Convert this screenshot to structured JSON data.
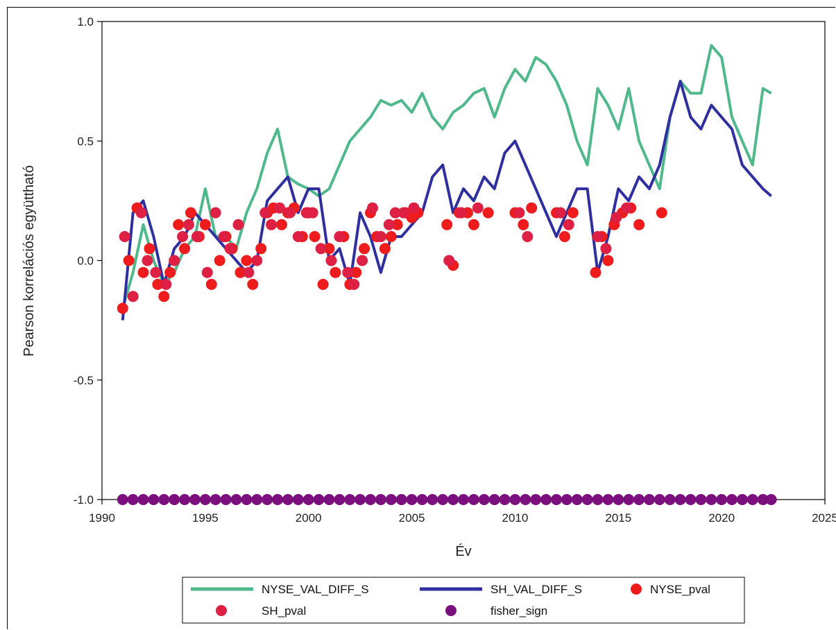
{
  "chart_data": {
    "type": "line",
    "xlabel": "Év",
    "ylabel": "Pearson korrelációs együttható",
    "xlim": [
      1990,
      2025
    ],
    "ylim": [
      -1.0,
      1.0
    ],
    "xticks": [
      "1990",
      "1995",
      "2000",
      "2005",
      "2010",
      "2015",
      "2020",
      "2025"
    ],
    "yticks": [
      "-1.0",
      "-0.5",
      "0.0",
      "0.5",
      "1.0"
    ],
    "grid": false,
    "legend_position": "bottom",
    "legend": [
      {
        "name": "NYSE_VAL_DIFF_S",
        "kind": "line",
        "color": "#4fb98c"
      },
      {
        "name": "SH_VAL_DIFF_S",
        "kind": "line",
        "color": "#2f2fa0"
      },
      {
        "name": "NYSE_pval",
        "kind": "marker",
        "color": "#ee1c1c"
      },
      {
        "name": "SH_pval",
        "kind": "marker",
        "color": "#dd2044"
      },
      {
        "name": "fisher_sign",
        "kind": "marker",
        "color": "#7b0f7e"
      }
    ],
    "series": [
      {
        "name": "NYSE_VAL_DIFF_S",
        "type": "line",
        "color": "#4fb98c",
        "x": [
          1991.0,
          1991.5,
          1992.0,
          1992.5,
          1993.0,
          1993.5,
          1994.0,
          1994.5,
          1995.0,
          1995.5,
          1996.0,
          1996.5,
          1997.0,
          1997.5,
          1998.0,
          1998.5,
          1999.0,
          1999.5,
          2000.0,
          2000.5,
          2001.0,
          2001.5,
          2002.0,
          2002.5,
          2003.0,
          2003.5,
          2004.0,
          2004.5,
          2005.0,
          2005.5,
          2006.0,
          2006.5,
          2007.0,
          2007.5,
          2008.0,
          2008.5,
          2009.0,
          2009.5,
          2010.0,
          2010.5,
          2011.0,
          2011.5,
          2012.0,
          2012.5,
          2013.0,
          2013.5,
          2014.0,
          2014.5,
          2015.0,
          2015.5,
          2016.0,
          2016.5,
          2017.0,
          2017.5,
          2018.0,
          2018.5,
          2019.0,
          2019.5,
          2020.0,
          2020.5,
          2021.0,
          2021.5,
          2022.0,
          2022.4
        ],
        "y": [
          -0.2,
          -0.05,
          0.15,
          0.0,
          -0.1,
          -0.05,
          0.05,
          0.1,
          0.3,
          0.1,
          0.1,
          0.05,
          0.2,
          0.3,
          0.45,
          0.55,
          0.35,
          0.32,
          0.3,
          0.27,
          0.3,
          0.4,
          0.5,
          0.55,
          0.6,
          0.67,
          0.65,
          0.67,
          0.62,
          0.7,
          0.6,
          0.55,
          0.62,
          0.65,
          0.7,
          0.72,
          0.6,
          0.72,
          0.8,
          0.75,
          0.85,
          0.82,
          0.75,
          0.65,
          0.5,
          0.4,
          0.72,
          0.65,
          0.55,
          0.72,
          0.5,
          0.4,
          0.3,
          0.6,
          0.75,
          0.7,
          0.7,
          0.9,
          0.85,
          0.6,
          0.5,
          0.4,
          0.72,
          0.7
        ]
      },
      {
        "name": "SH_VAL_DIFF_S",
        "type": "line",
        "color": "#2f2fa0",
        "x": [
          1991.0,
          1991.5,
          1992.0,
          1992.5,
          1993.0,
          1993.5,
          1994.0,
          1994.5,
          1995.0,
          1995.5,
          1996.0,
          1996.5,
          1997.0,
          1997.5,
          1998.0,
          1998.5,
          1999.0,
          1999.5,
          2000.0,
          2000.5,
          2001.0,
          2001.5,
          2002.0,
          2002.5,
          2003.0,
          2003.5,
          2004.0,
          2004.5,
          2005.0,
          2005.5,
          2006.0,
          2006.5,
          2007.0,
          2007.5,
          2008.0,
          2008.5,
          2009.0,
          2009.5,
          2010.0,
          2010.5,
          2011.0,
          2011.5,
          2012.0,
          2012.5,
          2013.0,
          2013.5,
          2014.0,
          2014.5,
          2015.0,
          2015.5,
          2016.0,
          2016.5,
          2017.0,
          2017.5,
          2018.0,
          2018.5,
          2019.0,
          2019.5,
          2020.0,
          2020.5,
          2021.0,
          2021.5,
          2022.0,
          2022.4
        ],
        "y": [
          -0.25,
          0.2,
          0.25,
          0.1,
          -0.1,
          0.05,
          0.1,
          0.2,
          0.15,
          0.1,
          0.05,
          0.0,
          -0.05,
          0.0,
          0.25,
          0.3,
          0.35,
          0.2,
          0.3,
          0.3,
          0.0,
          0.05,
          -0.1,
          0.2,
          0.1,
          -0.05,
          0.1,
          0.1,
          0.15,
          0.2,
          0.35,
          0.4,
          0.2,
          0.3,
          0.25,
          0.35,
          0.3,
          0.45,
          0.5,
          0.4,
          0.3,
          0.2,
          0.1,
          0.2,
          0.3,
          0.3,
          -0.05,
          0.1,
          0.3,
          0.25,
          0.35,
          0.3,
          0.4,
          0.6,
          0.75,
          0.6,
          0.55,
          0.65,
          0.6,
          0.55,
          0.4,
          0.35,
          0.3,
          0.27
        ]
      },
      {
        "name": "NYSE_pval",
        "type": "scatter",
        "color": "#ee1c1c",
        "x": [
          1991.0,
          1991.3,
          1991.7,
          1992.0,
          1992.3,
          1992.7,
          1993.0,
          1993.3,
          1993.7,
          1994.0,
          1994.3,
          1994.7,
          1995.0,
          1995.3,
          1995.7,
          1996.0,
          1996.3,
          1996.7,
          1997.0,
          1997.3,
          1997.7,
          1998.0,
          1998.3,
          1998.7,
          1999.0,
          1999.3,
          1999.7,
          2000.0,
          2000.3,
          2000.7,
          2001.0,
          2001.3,
          2001.7,
          2002.0,
          2002.3,
          2002.7,
          2003.0,
          2003.3,
          2003.7,
          2004.0,
          2004.3,
          2004.7,
          2005.0,
          2005.3,
          2006.7,
          2007.0,
          2007.3,
          2007.7,
          2008.0,
          2008.7,
          2010.0,
          2010.4,
          2010.8,
          2012.0,
          2012.4,
          2012.8,
          2013.9,
          2014.2,
          2014.5,
          2014.8,
          2015.2,
          2015.6,
          2016.0,
          2017.1
        ],
        "y": [
          -0.2,
          0.0,
          0.22,
          -0.05,
          0.05,
          -0.1,
          -0.15,
          -0.05,
          0.15,
          0.05,
          0.2,
          0.1,
          0.15,
          -0.1,
          0.0,
          0.1,
          0.05,
          -0.05,
          0.0,
          -0.1,
          0.05,
          0.2,
          0.22,
          0.15,
          0.2,
          0.22,
          0.1,
          0.2,
          0.1,
          -0.1,
          0.05,
          -0.05,
          0.1,
          -0.1,
          -0.05,
          0.05,
          0.2,
          0.1,
          0.05,
          0.1,
          0.15,
          0.2,
          0.18,
          0.2,
          0.15,
          -0.02,
          0.2,
          0.2,
          0.15,
          0.2,
          0.2,
          0.15,
          0.22,
          0.2,
          0.1,
          0.2,
          -0.05,
          0.1,
          0.0,
          0.15,
          0.2,
          0.22,
          0.15,
          0.2
        ]
      },
      {
        "name": "SH_pval",
        "type": "scatter",
        "color": "#dd2044",
        "x": [
          1991.1,
          1991.5,
          1991.9,
          1992.2,
          1992.6,
          1993.1,
          1993.5,
          1993.9,
          1994.2,
          1994.6,
          1995.1,
          1995.5,
          1995.9,
          1996.2,
          1996.6,
          1997.1,
          1997.5,
          1997.9,
          1998.2,
          1998.6,
          1999.1,
          1999.5,
          1999.9,
          2000.2,
          2000.6,
          2001.1,
          2001.5,
          2001.9,
          2002.2,
          2002.6,
          2003.1,
          2003.5,
          2003.9,
          2004.2,
          2004.6,
          2005.1,
          2006.8,
          2007.4,
          2008.2,
          2010.2,
          2010.6,
          2012.2,
          2012.6,
          2014.0,
          2014.4,
          2014.9,
          2015.4
        ],
        "y": [
          0.1,
          -0.15,
          0.2,
          0.0,
          -0.05,
          -0.1,
          0.0,
          0.1,
          0.15,
          0.1,
          -0.05,
          0.2,
          0.1,
          0.05,
          0.15,
          -0.05,
          0.0,
          0.2,
          0.15,
          0.22,
          0.2,
          0.1,
          0.2,
          0.2,
          0.05,
          0.0,
          0.1,
          -0.05,
          -0.1,
          0.0,
          0.22,
          0.1,
          0.15,
          0.2,
          0.2,
          0.22,
          0.0,
          0.2,
          0.22,
          0.2,
          0.1,
          0.2,
          0.15,
          0.1,
          0.05,
          0.18,
          0.22
        ]
      },
      {
        "name": "fisher_sign",
        "type": "scatter",
        "color": "#7b0f7e",
        "x": [
          1991.0,
          1991.5,
          1992.0,
          1992.5,
          1993.0,
          1993.5,
          1994.0,
          1994.5,
          1995.0,
          1995.5,
          1996.0,
          1996.5,
          1997.0,
          1997.5,
          1998.0,
          1998.5,
          1999.0,
          1999.5,
          2000.0,
          2000.5,
          2001.0,
          2001.5,
          2002.0,
          2002.5,
          2003.0,
          2003.5,
          2004.0,
          2004.5,
          2005.0,
          2005.5,
          2006.0,
          2006.5,
          2007.0,
          2007.5,
          2008.0,
          2008.5,
          2009.0,
          2009.5,
          2010.0,
          2010.5,
          2011.0,
          2011.5,
          2012.0,
          2012.5,
          2013.0,
          2013.5,
          2014.0,
          2014.5,
          2015.0,
          2015.5,
          2016.0,
          2016.5,
          2017.0,
          2017.5,
          2018.0,
          2018.5,
          2019.0,
          2019.5,
          2020.0,
          2020.5,
          2021.0,
          2021.5,
          2022.0,
          2022.4
        ],
        "y": [
          -1.0,
          -1.0,
          -1.0,
          -1.0,
          -1.0,
          -1.0,
          -1.0,
          -1.0,
          -1.0,
          -1.0,
          -1.0,
          -1.0,
          -1.0,
          -1.0,
          -1.0,
          -1.0,
          -1.0,
          -1.0,
          -1.0,
          -1.0,
          -1.0,
          -1.0,
          -1.0,
          -1.0,
          -1.0,
          -1.0,
          -1.0,
          -1.0,
          -1.0,
          -1.0,
          -1.0,
          -1.0,
          -1.0,
          -1.0,
          -1.0,
          -1.0,
          -1.0,
          -1.0,
          -1.0,
          -1.0,
          -1.0,
          -1.0,
          -1.0,
          -1.0,
          -1.0,
          -1.0,
          -1.0,
          -1.0,
          -1.0,
          -1.0,
          -1.0,
          -1.0,
          -1.0,
          -1.0,
          -1.0,
          -1.0,
          -1.0,
          -1.0,
          -1.0,
          -1.0,
          -1.0,
          -1.0,
          -1.0,
          -1.0
        ]
      }
    ]
  }
}
